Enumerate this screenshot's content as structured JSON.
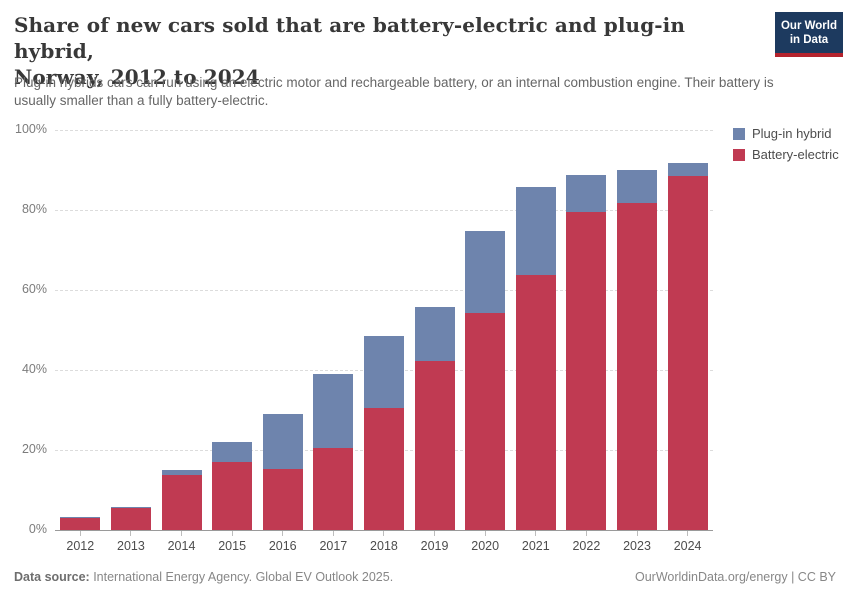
{
  "header": {
    "title_line1": "Share of new cars sold that are battery-electric and plug-in hybrid,",
    "title_line2": "Norway, 2012 to 2024",
    "subtitle": "Plug-in hybrids cars can run using an electric motor and rechargeable battery, or an internal combustion engine. Their battery is usually smaller than a fully battery-electric.",
    "logo": {
      "line1": "Our World",
      "line2": "in Data",
      "bg_color": "#1d3a5f",
      "accent_color": "#b5232d"
    }
  },
  "chart_data": {
    "type": "bar",
    "stacked": true,
    "title": "Share of new cars sold that are battery-electric and plug-in hybrid, Norway, 2012 to 2024",
    "xlabel": "",
    "ylabel": "",
    "ylim": [
      0,
      100
    ],
    "yticks": [
      0,
      20,
      40,
      60,
      80,
      100
    ],
    "ytick_labels": [
      "0%",
      "20%",
      "40%",
      "60%",
      "80%",
      "100%"
    ],
    "grid": "horizontal-dashed",
    "legend_position": "top-right",
    "categories": [
      "2012",
      "2013",
      "2014",
      "2015",
      "2016",
      "2017",
      "2018",
      "2019",
      "2020",
      "2021",
      "2022",
      "2023",
      "2024"
    ],
    "series": [
      {
        "name": "Battery-electric",
        "color": "#c03a52",
        "values": [
          2.9,
          5.5,
          13.7,
          16.9,
          15.2,
          20.5,
          30.6,
          42.2,
          54.3,
          63.7,
          79.5,
          81.8,
          88.6
        ]
      },
      {
        "name": "Plug-in hybrid",
        "color": "#6e84ad",
        "values": [
          0.4,
          0.3,
          1.3,
          5.1,
          13.7,
          18.4,
          18.0,
          13.5,
          20.5,
          22.0,
          9.3,
          8.1,
          3.1
        ]
      }
    ]
  },
  "footer": {
    "source_label": "Data source:",
    "source_text": " International Energy Agency. Global EV Outlook 2025.",
    "credit": "OurWorldinData.org/energy | CC BY"
  }
}
